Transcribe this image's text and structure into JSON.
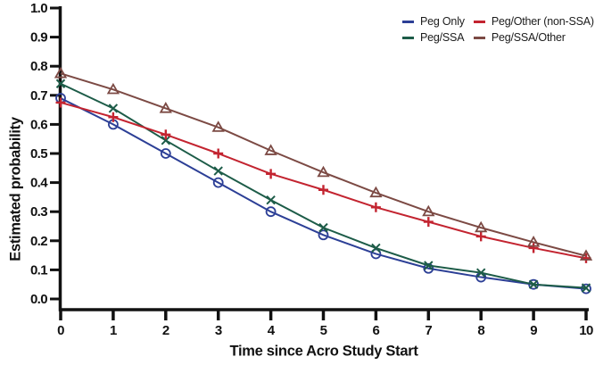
{
  "chart_data": {
    "type": "line",
    "title": "",
    "xlabel": "Time since Acro Study Start",
    "ylabel": "Estimated probability",
    "xlim": [
      0,
      10
    ],
    "ylim": [
      0.0,
      1.0
    ],
    "xticks": [
      "0",
      "1",
      "2",
      "3",
      "4",
      "5",
      "6",
      "7",
      "8",
      "9",
      "10"
    ],
    "yticks": [
      "0.0",
      "0.1",
      "0.2",
      "0.3",
      "0.4",
      "0.5",
      "0.6",
      "0.7",
      "0.8",
      "0.9",
      "1.0"
    ],
    "grid": false,
    "legend_position": "top-right",
    "axis_color": "#111111",
    "x": [
      0,
      1,
      2,
      3,
      4,
      5,
      6,
      7,
      8,
      9,
      10
    ],
    "series": [
      {
        "name": "Peg Only",
        "color": "#2c3f96",
        "marker": "circle",
        "values": [
          0.69,
          0.6,
          0.5,
          0.4,
          0.3,
          0.22,
          0.155,
          0.105,
          0.075,
          0.05,
          0.035
        ]
      },
      {
        "name": "Peg/SSA",
        "color": "#1d5c48",
        "marker": "x",
        "values": [
          0.74,
          0.655,
          0.545,
          0.44,
          0.34,
          0.245,
          0.175,
          0.115,
          0.09,
          0.05,
          0.038
        ]
      },
      {
        "name": "Peg/Other (non-SSA)",
        "color": "#c32430",
        "marker": "plus",
        "values": [
          0.675,
          0.625,
          0.565,
          0.5,
          0.43,
          0.375,
          0.315,
          0.265,
          0.215,
          0.175,
          0.14
        ]
      },
      {
        "name": "Peg/SSA/Other",
        "color": "#7c4a44",
        "marker": "triangle",
        "values": [
          0.775,
          0.72,
          0.655,
          0.59,
          0.51,
          0.435,
          0.365,
          0.3,
          0.245,
          0.195,
          0.148
        ]
      }
    ]
  }
}
